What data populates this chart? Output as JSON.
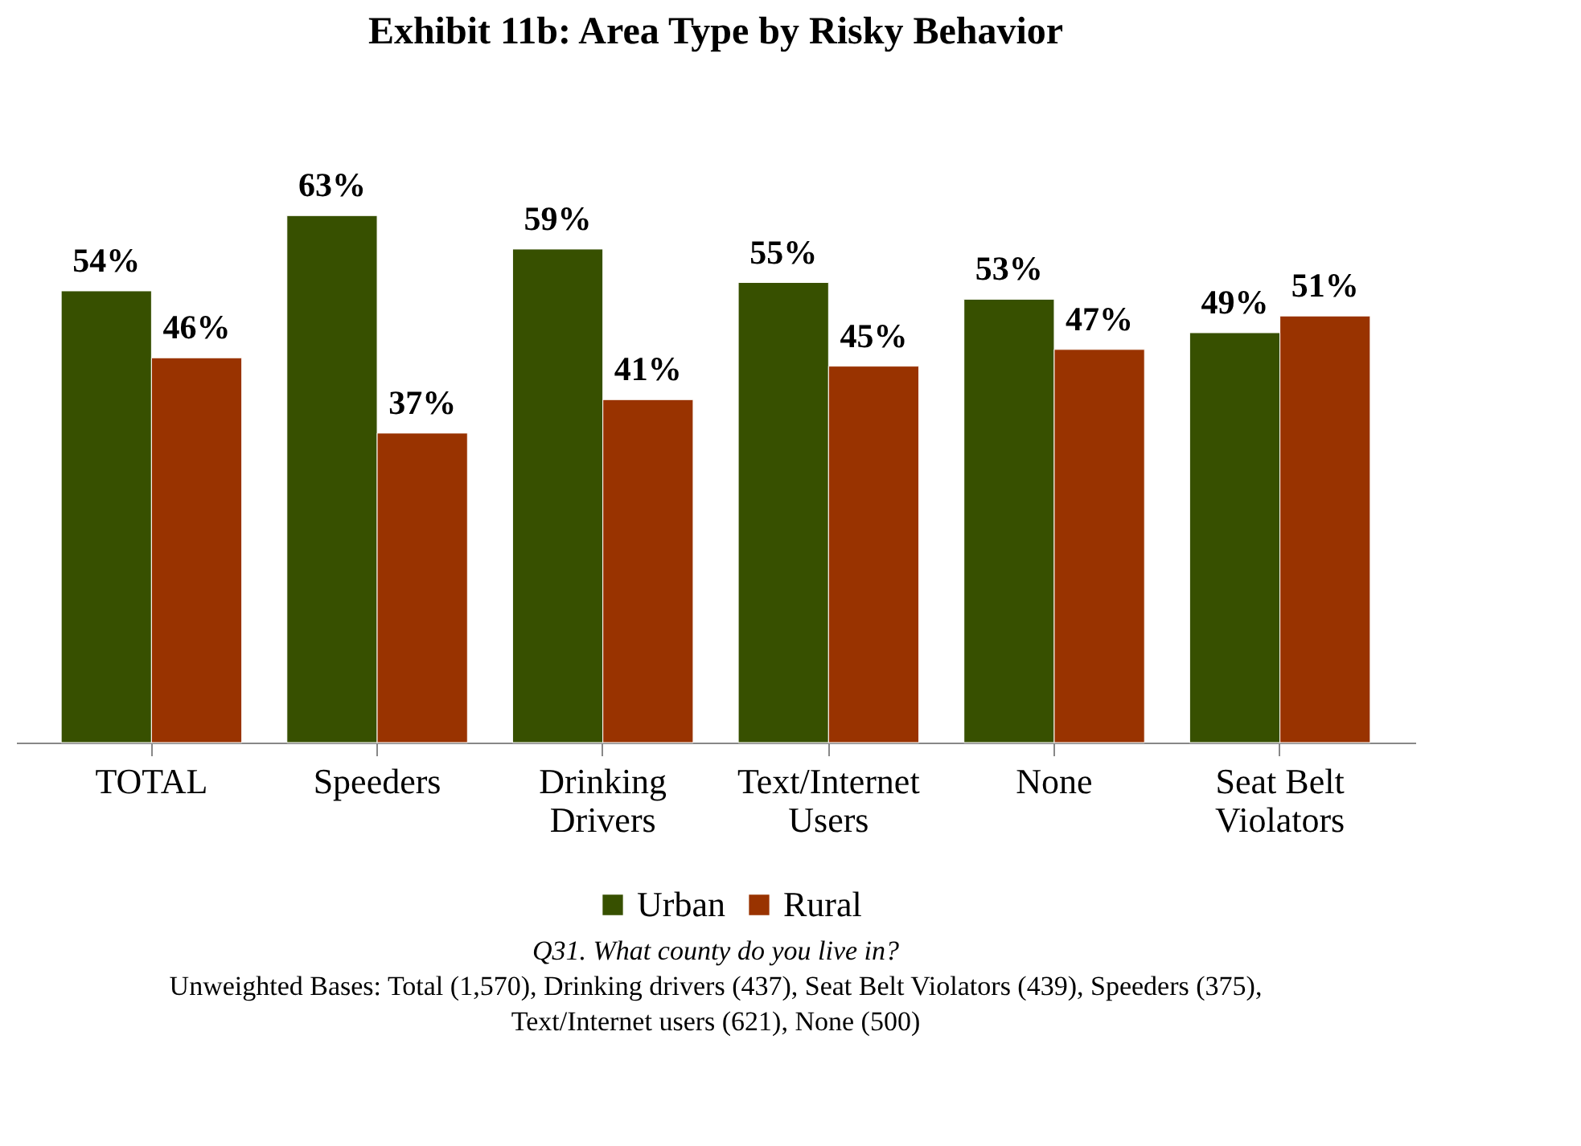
{
  "chart_data": {
    "type": "bar",
    "title": "Exhibit 11b: Area Type by Risky Behavior",
    "categories": [
      "TOTAL",
      "Speeders",
      "Drinking Drivers",
      "Text/Internet Users",
      "None",
      "Seat Belt Violators"
    ],
    "series": [
      {
        "name": "Urban",
        "color": "#375000",
        "values": [
          54,
          63,
          59,
          55,
          53,
          49
        ],
        "value_labels": [
          "54%",
          "63%",
          "59%",
          "55%",
          "53%",
          "49%"
        ]
      },
      {
        "name": "Rural",
        "color": "#993300",
        "values": [
          46,
          37,
          41,
          45,
          47,
          51
        ],
        "value_labels": [
          "46%",
          "37%",
          "41%",
          "45%",
          "47%",
          "51%"
        ]
      }
    ],
    "legend": "bottom",
    "grid": false,
    "annotations": [
      "Q31. What county do you live in?",
      "Unweighted Bases: Total (1,570), Drinking drivers (437), Seat Belt Violators (439), Speeders (375), Text/Internet users (621), None (500)"
    ]
  }
}
